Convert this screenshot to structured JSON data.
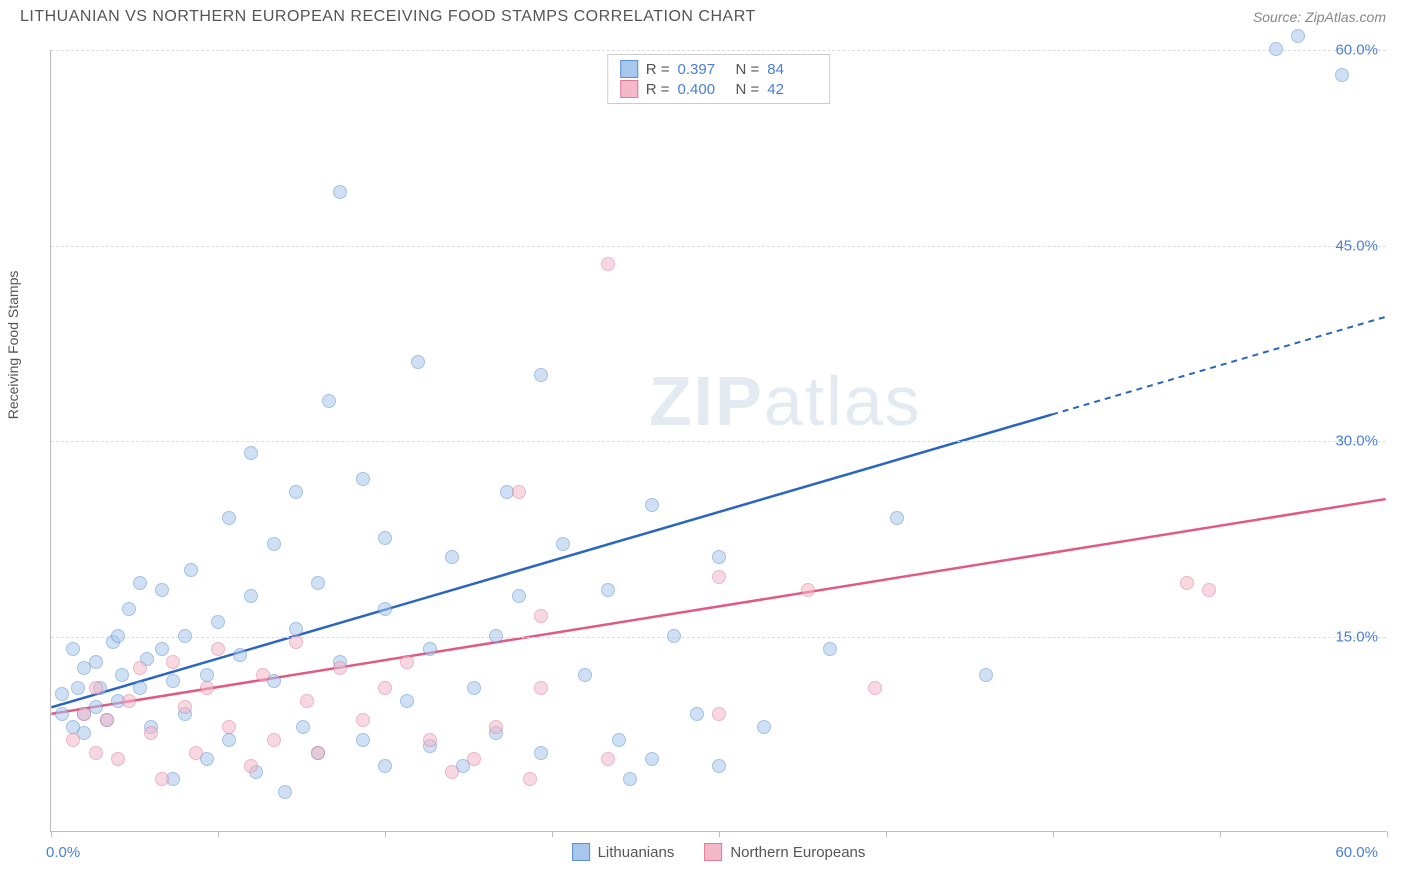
{
  "header": {
    "title": "LITHUANIAN VS NORTHERN EUROPEAN RECEIVING FOOD STAMPS CORRELATION CHART",
    "source": "Source: ZipAtlas.com"
  },
  "chart": {
    "type": "scatter",
    "xlim": [
      0,
      60
    ],
    "ylim": [
      0,
      60
    ],
    "x_min_label": "0.0%",
    "x_max_label": "60.0%",
    "y_axis_title": "Receiving Food Stamps",
    "y_ticks": [
      15,
      30,
      45,
      60
    ],
    "y_tick_labels": [
      "15.0%",
      "30.0%",
      "45.0%",
      "60.0%"
    ],
    "x_ticks": [
      0,
      7.5,
      15,
      22.5,
      30,
      37.5,
      45,
      52.5,
      60
    ],
    "grid_color": "#dddddd",
    "axis_color": "#bbbbbb",
    "tick_label_color": "#4a7fd6",
    "background_color": "#ffffff",
    "marker_radius": 7,
    "marker_opacity": 0.55,
    "watermark": "ZIPatlas",
    "series": [
      {
        "name": "Lithuanians",
        "fill_color": "#a8c7ec",
        "stroke_color": "#5a8fd0",
        "trend_color": "#2a65c0",
        "r_value": "0.397",
        "n_value": "84",
        "trend": {
          "x1": 0,
          "y1": 9.5,
          "x2": 45,
          "y2": 32,
          "dash_to_x": 60,
          "dash_to_y": 39.5
        },
        "points": [
          [
            0.5,
            9
          ],
          [
            0.5,
            10.5
          ],
          [
            1,
            14
          ],
          [
            1,
            8
          ],
          [
            1.2,
            11
          ],
          [
            1.5,
            9
          ],
          [
            1.5,
            12.5
          ],
          [
            1.5,
            7.5
          ],
          [
            2,
            9.5
          ],
          [
            2,
            13
          ],
          [
            2.2,
            11
          ],
          [
            2.5,
            8.5
          ],
          [
            2.8,
            14.5
          ],
          [
            3,
            10
          ],
          [
            3,
            15
          ],
          [
            3.2,
            12
          ],
          [
            3.5,
            17
          ],
          [
            4,
            11
          ],
          [
            4,
            19
          ],
          [
            4.3,
            13.2
          ],
          [
            4.5,
            8
          ],
          [
            5,
            14
          ],
          [
            5,
            18.5
          ],
          [
            5.5,
            4
          ],
          [
            5.5,
            11.5
          ],
          [
            6,
            9
          ],
          [
            6,
            15
          ],
          [
            6.3,
            20
          ],
          [
            7,
            5.5
          ],
          [
            7,
            12
          ],
          [
            7.5,
            16
          ],
          [
            8,
            24
          ],
          [
            8,
            7
          ],
          [
            8.5,
            13.5
          ],
          [
            9,
            18
          ],
          [
            9,
            29
          ],
          [
            9.2,
            4.5
          ],
          [
            10,
            11.5
          ],
          [
            10,
            22
          ],
          [
            10.5,
            3
          ],
          [
            11,
            15.5
          ],
          [
            11,
            26
          ],
          [
            11.3,
            8
          ],
          [
            12,
            6
          ],
          [
            12,
            19
          ],
          [
            12.5,
            33
          ],
          [
            13,
            49
          ],
          [
            13,
            13
          ],
          [
            14,
            27
          ],
          [
            14,
            7
          ],
          [
            15,
            5
          ],
          [
            15,
            17
          ],
          [
            15,
            22.5
          ],
          [
            16,
            10
          ],
          [
            16.5,
            36
          ],
          [
            17,
            14
          ],
          [
            17,
            6.5
          ],
          [
            18,
            21
          ],
          [
            18.5,
            5
          ],
          [
            19,
            11
          ],
          [
            20,
            15
          ],
          [
            20,
            7.5
          ],
          [
            20.5,
            26
          ],
          [
            21,
            18
          ],
          [
            22,
            35
          ],
          [
            22,
            6
          ],
          [
            23,
            22
          ],
          [
            24,
            12
          ],
          [
            25,
            18.5
          ],
          [
            25.5,
            7
          ],
          [
            26,
            4
          ],
          [
            27,
            5.5
          ],
          [
            27,
            25
          ],
          [
            28,
            15
          ],
          [
            29,
            9
          ],
          [
            30,
            5
          ],
          [
            30,
            21
          ],
          [
            32,
            8
          ],
          [
            35,
            14
          ],
          [
            38,
            24
          ],
          [
            42,
            12
          ],
          [
            55,
            60
          ],
          [
            56,
            61
          ],
          [
            58,
            58
          ]
        ]
      },
      {
        "name": "Northern Europeans",
        "fill_color": "#f3b9c8",
        "stroke_color": "#e07a9a",
        "trend_color": "#e05a82",
        "r_value": "0.400",
        "n_value": "42",
        "trend": {
          "x1": 0,
          "y1": 9,
          "x2": 60,
          "y2": 25.5,
          "dash_to_x": 60,
          "dash_to_y": 25.5
        },
        "points": [
          [
            1,
            7
          ],
          [
            1.5,
            9
          ],
          [
            2,
            6
          ],
          [
            2,
            11
          ],
          [
            2.5,
            8.5
          ],
          [
            3,
            5.5
          ],
          [
            3.5,
            10
          ],
          [
            4,
            12.5
          ],
          [
            4.5,
            7.5
          ],
          [
            5,
            4
          ],
          [
            5.5,
            13
          ],
          [
            6,
            9.5
          ],
          [
            6.5,
            6
          ],
          [
            7,
            11
          ],
          [
            7.5,
            14
          ],
          [
            8,
            8
          ],
          [
            9,
            5
          ],
          [
            9.5,
            12
          ],
          [
            10,
            7
          ],
          [
            11,
            14.5
          ],
          [
            11.5,
            10
          ],
          [
            12,
            6
          ],
          [
            13,
            12.5
          ],
          [
            14,
            8.5
          ],
          [
            15,
            11
          ],
          [
            16,
            13
          ],
          [
            17,
            7
          ],
          [
            18,
            4.5
          ],
          [
            19,
            5.5
          ],
          [
            20,
            8
          ],
          [
            21,
            26
          ],
          [
            21.5,
            4
          ],
          [
            22,
            16.5
          ],
          [
            22,
            11
          ],
          [
            25,
            5.5
          ],
          [
            25,
            43.5
          ],
          [
            30,
            9
          ],
          [
            30,
            19.5
          ],
          [
            34,
            18.5
          ],
          [
            37,
            11
          ],
          [
            51,
            19
          ],
          [
            52,
            18.5
          ]
        ]
      }
    ],
    "x_legend": [
      {
        "label": "Lithuanians",
        "fill": "#a8c7ec",
        "stroke": "#5a8fd0"
      },
      {
        "label": "Northern Europeans",
        "fill": "#f3b9c8",
        "stroke": "#e07a9a"
      }
    ]
  }
}
